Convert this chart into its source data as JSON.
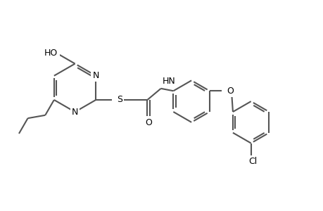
{
  "bg_color": "#ffffff",
  "bond_color": "#555555",
  "text_color": "#000000",
  "line_width": 1.5,
  "font_size": 9,
  "fig_width": 4.6,
  "fig_height": 3.0,
  "dpi": 100,
  "xlim": [
    -0.5,
    9.5
  ],
  "ylim": [
    -1.0,
    5.5
  ]
}
